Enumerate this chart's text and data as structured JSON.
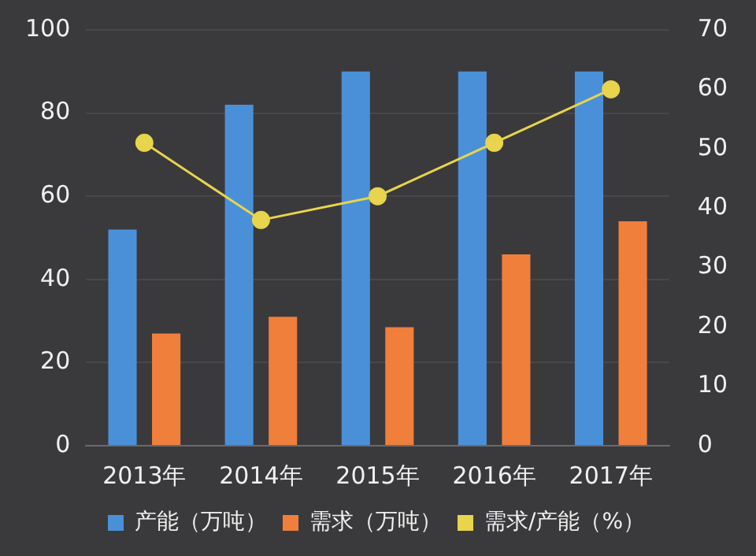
{
  "chart_data": {
    "type": "bar",
    "categories": [
      "2013年",
      "2014年",
      "2015年",
      "2016年",
      "2017年"
    ],
    "series": [
      {
        "name": "产能（万吨）",
        "color": "#4a90d9",
        "values": [
          52,
          82,
          90,
          90,
          90
        ]
      },
      {
        "name": "需求（万吨）",
        "color": "#f07f3c",
        "values": [
          27,
          31,
          28.5,
          46,
          54
        ]
      },
      {
        "name": "需求/产能（%）",
        "type": "line",
        "axis": "y2",
        "color": "#e8d44d",
        "values": [
          51,
          38,
          42,
          51,
          60
        ]
      }
    ],
    "ylim": [
      0,
      100
    ],
    "yticks": [
      0,
      20,
      40,
      60,
      80,
      100
    ],
    "y2lim": [
      0,
      70
    ],
    "y2ticks": [
      0,
      10,
      20,
      30,
      40,
      50,
      60,
      70
    ],
    "grid": "y",
    "legend": "bottom",
    "marker": "circle"
  }
}
